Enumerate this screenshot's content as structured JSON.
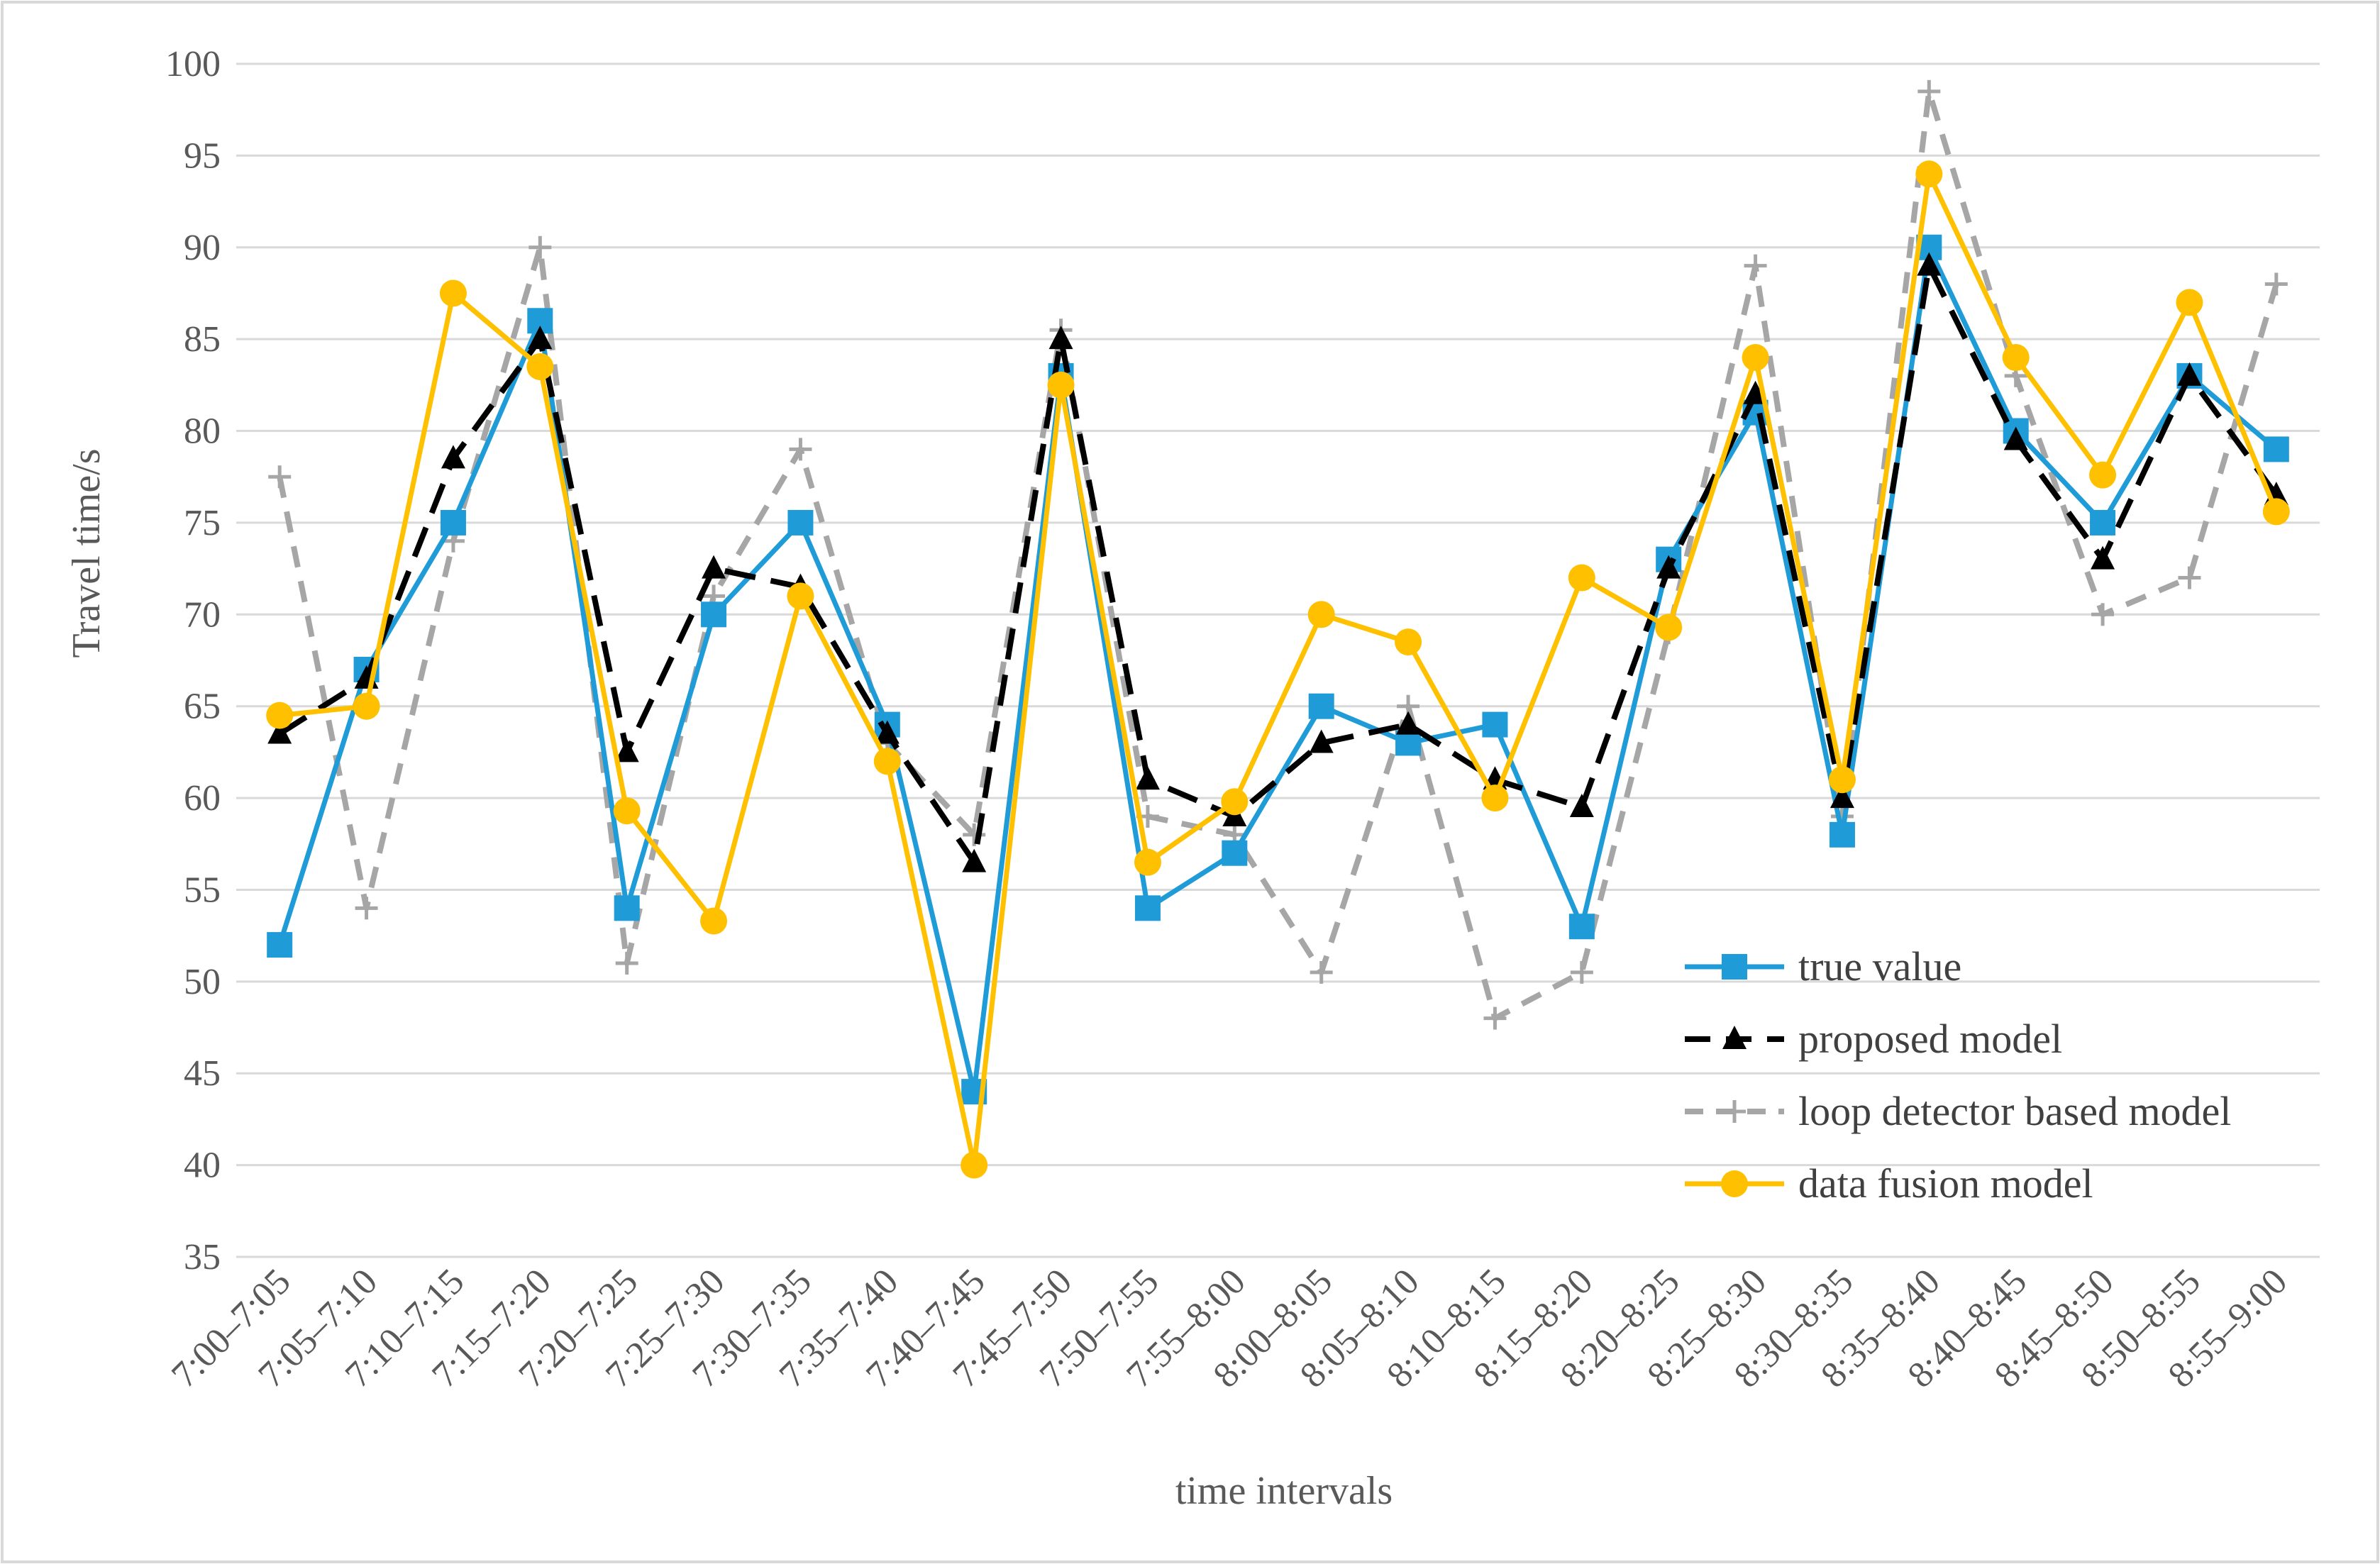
{
  "chart_data": {
    "type": "line",
    "title": "",
    "xlabel": "time intervals",
    "ylabel": "Travel time/s",
    "ylim": [
      35,
      100
    ],
    "yticks": [
      35,
      40,
      45,
      50,
      55,
      60,
      65,
      70,
      75,
      80,
      85,
      90,
      95,
      100
    ],
    "grid": true,
    "legend_position": "bottom-right",
    "categories": [
      "7:00–7:05",
      "7:05–7:10",
      "7:10–7:15",
      "7:15–7:20",
      "7:20–7:25",
      "7:25–7:30",
      "7:30–7:35",
      "7:35–7:40",
      "7:40–7:45",
      "7:45–7:50",
      "7:50–7:55",
      "7:55–8:00",
      "8:00–8:05",
      "8:05–8:10",
      "8:10–8:15",
      "8:15–8:20",
      "8:20–8:25",
      "8:25–8:30",
      "8:30–8:35",
      "8:35–8:40",
      "8:40–8:45",
      "8:45–8:50",
      "8:50–8:55",
      "8:55–9:00"
    ],
    "series": [
      {
        "name": "true value",
        "color": "#1f9bd7",
        "dash": "solid",
        "marker": "square",
        "values": [
          52,
          67,
          75,
          86,
          54,
          70,
          75,
          64,
          44,
          83,
          54,
          57,
          65,
          63,
          64,
          53,
          73,
          81,
          58,
          90,
          80,
          75,
          83,
          79
        ]
      },
      {
        "name": "proposed model",
        "color": "#000000",
        "dash": "longdash",
        "marker": "triangle",
        "values": [
          63.5,
          66.5,
          78.5,
          85,
          62.5,
          72.5,
          71.5,
          63.5,
          56.5,
          85,
          61,
          59,
          63,
          64,
          61,
          59.5,
          72.5,
          82,
          60,
          89,
          79.5,
          73,
          83,
          76.5
        ]
      },
      {
        "name": "loop detector based model",
        "color": "#a6a6a6",
        "dash": "dash",
        "marker": "plus",
        "values": [
          77.5,
          54,
          74,
          90,
          51,
          71,
          79,
          63,
          58,
          85.5,
          59,
          58,
          50.5,
          65,
          48,
          50.5,
          69,
          89,
          59,
          98.5,
          83,
          70,
          72,
          88
        ]
      },
      {
        "name": "data fusion model",
        "color": "#ffc000",
        "dash": "solid",
        "marker": "circle",
        "values": [
          64.5,
          65,
          87.5,
          83.5,
          59.3,
          53.3,
          71,
          62,
          40,
          82.5,
          56.5,
          59.8,
          70,
          68.5,
          60,
          72,
          69.3,
          84,
          61,
          94,
          84,
          77.6,
          87,
          75.6
        ]
      }
    ]
  }
}
